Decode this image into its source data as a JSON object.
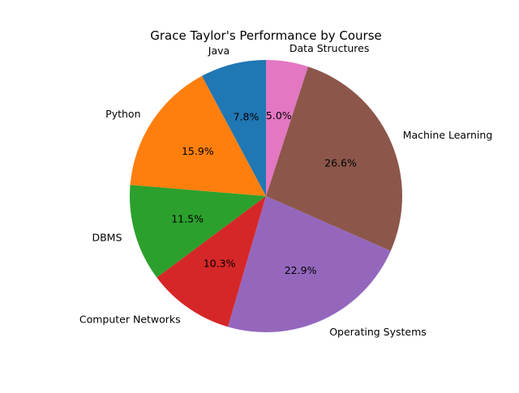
{
  "chart_data": {
    "type": "pie",
    "title": "Grace Taylor's Performance by Course",
    "start_angle_deg": 90,
    "direction": "counterclockwise",
    "legend": "none",
    "slices": [
      {
        "label": "Java",
        "percent": 7.8,
        "percent_label": "7.8%",
        "color": "#1f77b4"
      },
      {
        "label": "Python",
        "percent": 15.9,
        "percent_label": "15.9%",
        "color": "#ff7f0e"
      },
      {
        "label": "DBMS",
        "percent": 11.5,
        "percent_label": "11.5%",
        "color": "#2ca02c"
      },
      {
        "label": "Computer Networks",
        "percent": 10.3,
        "percent_label": "10.3%",
        "color": "#d62728"
      },
      {
        "label": "Operating Systems",
        "percent": 22.9,
        "percent_label": "22.9%",
        "color": "#9467bd"
      },
      {
        "label": "Machine Learning",
        "percent": 26.6,
        "percent_label": "26.6%",
        "color": "#8c564b"
      },
      {
        "label": "Data Structures",
        "percent": 5.0,
        "percent_label": "5.0%",
        "color": "#e377c2"
      }
    ]
  }
}
